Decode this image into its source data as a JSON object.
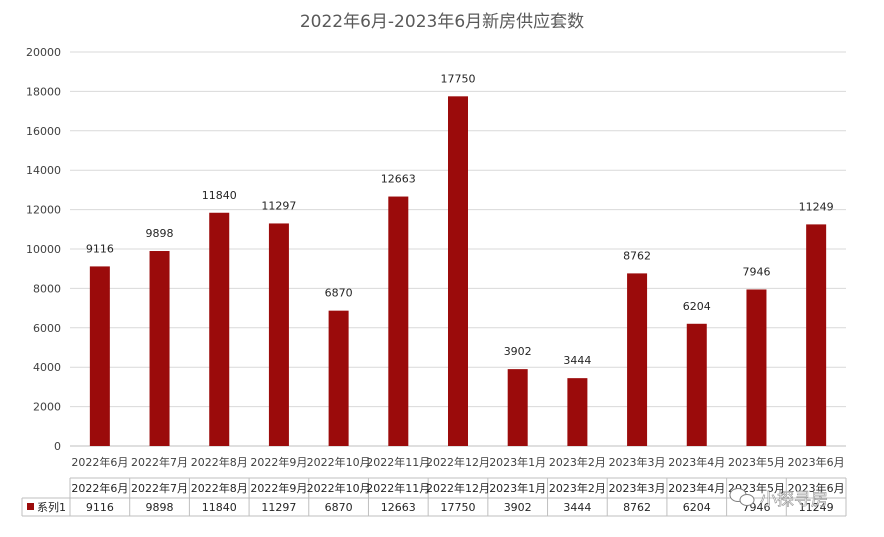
{
  "chart_data": {
    "type": "bar",
    "title": "2022年6月-2023年6月新房供应套数",
    "categories": [
      "2022年6月",
      "2022年7月",
      "2022年8月",
      "2022年9月",
      "2022年10月",
      "2022年11月",
      "2022年12月",
      "2023年1月",
      "2023年2月",
      "2023年3月",
      "2023年4月",
      "2023年5月",
      "2023年6月"
    ],
    "series": [
      {
        "name": "系列1",
        "values": [
          9116,
          9898,
          11840,
          11297,
          6870,
          12663,
          17750,
          3902,
          3444,
          8762,
          6204,
          7946,
          11249
        ],
        "color": "#9b0b0b"
      }
    ],
    "ylim": [
      0,
      20000
    ],
    "yticks": [
      0,
      2000,
      4000,
      6000,
      8000,
      10000,
      12000,
      14000,
      16000,
      18000,
      20000
    ],
    "grid": true,
    "legend": "data-table",
    "data_table": true
  },
  "watermark": {
    "text": "小探寻房",
    "icon": "wechat-icon"
  }
}
